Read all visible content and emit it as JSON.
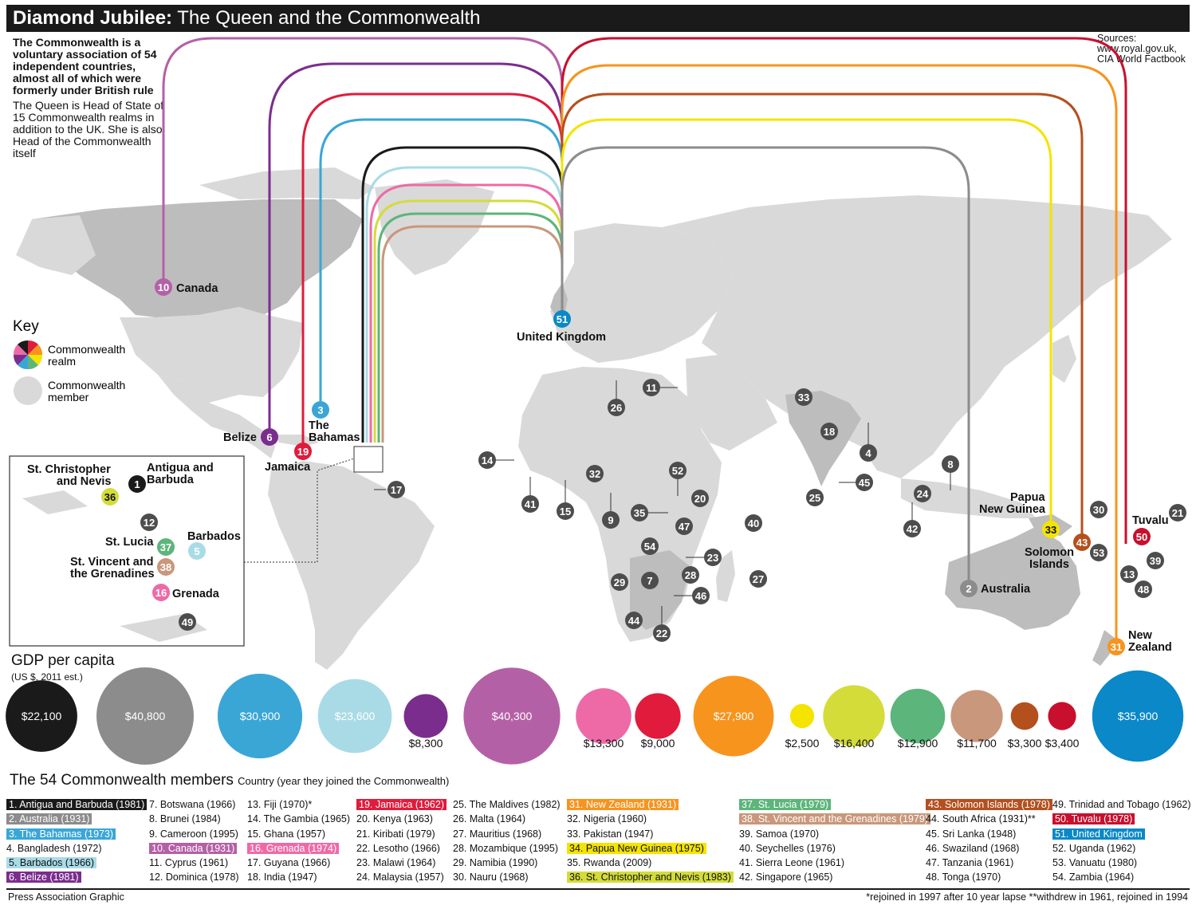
{
  "title": {
    "bold": "Diamond Jubilee:",
    "rest": " The Queen and the Commonwealth"
  },
  "intro": {
    "bold": "The Commonwealth is a voluntary association of 54 independent countries, almost all of which were formerly under British rule",
    "text": "The Queen is Head of State of 15 Commonwealth realms in addition to the UK. She is also Head of the Commonwealth itself"
  },
  "sources": {
    "label": "Sources:",
    "line1": "www.royal.gov.uk,",
    "line2": "CIA World Factbook"
  },
  "key": {
    "title": "Key",
    "realm_line1": "Commonwealth",
    "realm_line2": "realm",
    "member_line1": "Commonwealth",
    "member_line2": "member"
  },
  "colors": {
    "antigua": "#1a1a1a",
    "australia": "#8c8c8c",
    "bahamas": "#3aa6d6",
    "barbados": "#a9dbe7",
    "belize": "#7b2d8e",
    "canada": "#b460a6",
    "grenada": "#ee6aa7",
    "jamaica": "#e01b3c",
    "nz": "#f7941e",
    "png": "#f4e400",
    "stkitts": "#d4dc3a",
    "stlucia": "#5cb57a",
    "stvincent": "#c9977b",
    "solomon": "#b4501e",
    "tuvalu": "#c8102e",
    "uk": "#0a88c7",
    "member": "#4d4d4d",
    "land": "#d9d9d9",
    "realm_land": "#bdbdbd"
  },
  "map_labels": {
    "canada": "Canada",
    "belize": "Belize",
    "bahamas_1": "The",
    "bahamas_2": "Bahamas",
    "jamaica": "Jamaica",
    "uk": "United Kingdom",
    "png_1": "Papua",
    "png_2": "New Guinea",
    "solomon_1": "Solomon",
    "solomon_2": "Islands",
    "australia": "Australia",
    "tuvalu": "Tuvalu",
    "nz_1": "New",
    "nz_2": "Zealand"
  },
  "inset_labels": {
    "stkitts_1": "St. Christopher",
    "stkitts_2": "and Nevis",
    "antigua_1": "Antigua and",
    "antigua_2": "Barbuda",
    "stlucia": "St. Lucia",
    "barbados": "Barbados",
    "stvincent_1": "St. Vincent and",
    "stvincent_2": "the Grenadines",
    "grenada": "Grenada"
  },
  "gdp": {
    "title": "GDP per capita",
    "subtitle": "(US $, 2011 est.)",
    "items": [
      {
        "country": "Antigua and Barbuda",
        "label": "$22,100",
        "value": 22100,
        "color": "#1a1a1a",
        "inside": true
      },
      {
        "country": "Australia",
        "label": "$40,800",
        "value": 40800,
        "color": "#8c8c8c",
        "inside": true
      },
      {
        "country": "The Bahamas",
        "label": "$30,900",
        "value": 30900,
        "color": "#3aa6d6",
        "inside": true
      },
      {
        "country": "Barbados",
        "label": "$23,600",
        "value": 23600,
        "color": "#a9dbe7",
        "inside": true
      },
      {
        "country": "Belize",
        "label": "$8,300",
        "value": 8300,
        "color": "#7b2d8e",
        "inside": false
      },
      {
        "country": "Canada",
        "label": "$40,300",
        "value": 40300,
        "color": "#b460a6",
        "inside": true
      },
      {
        "country": "Grenada",
        "label": "$13,300",
        "value": 13300,
        "color": "#ee6aa7",
        "inside": false
      },
      {
        "country": "Jamaica",
        "label": "$9,000",
        "value": 9000,
        "color": "#e01b3c",
        "inside": false
      },
      {
        "country": "New Zealand",
        "label": "$27,900",
        "value": 27900,
        "color": "#f7941e",
        "inside": true
      },
      {
        "country": "Papua New Guinea",
        "label": "$2,500",
        "value": 2500,
        "color": "#f4e400",
        "inside": false
      },
      {
        "country": "St. Christopher and Nevis",
        "label": "$16,400",
        "value": 16400,
        "color": "#d4dc3a",
        "inside": false
      },
      {
        "country": "St. Lucia",
        "label": "$12,900",
        "value": 12900,
        "color": "#5cb57a",
        "inside": false
      },
      {
        "country": "St. Vincent and the Grenadines",
        "label": "$11,700",
        "value": 11700,
        "color": "#c9977b",
        "inside": false
      },
      {
        "country": "Solomon Islands",
        "label": "$3,300",
        "value": 3300,
        "color": "#b4501e",
        "inside": false
      },
      {
        "country": "Tuvalu",
        "label": "$3,400",
        "value": 3400,
        "color": "#c8102e",
        "inside": false
      },
      {
        "country": "United Kingdom",
        "label": "$35,900",
        "value": 35900,
        "color": "#0a88c7",
        "inside": true
      }
    ]
  },
  "members": {
    "title": "The 54 Commonwealth members",
    "subtitle": "Country (year they joined the Commonwealth)",
    "columns": [
      [
        {
          "text": "1. Antigua and Barbuda (1981)",
          "bg": "#1a1a1a",
          "fg": "#ffffff"
        },
        {
          "text": "2. Australia (1931)",
          "bg": "#8c8c8c",
          "fg": "#ffffff"
        },
        {
          "text": "3. The Bahamas (1973)",
          "bg": "#3aa6d6",
          "fg": "#ffffff"
        },
        {
          "text": "4. Bangladesh (1972)"
        },
        {
          "text": "5. Barbados (1966)",
          "bg": "#a9dbe7",
          "fg": "#111111"
        },
        {
          "text": "6. Belize (1981)",
          "bg": "#7b2d8e",
          "fg": "#ffffff"
        }
      ],
      [
        {
          "text": "7. Botswana (1966)"
        },
        {
          "text": "8. Brunei (1984)"
        },
        {
          "text": "9. Cameroon (1995)"
        },
        {
          "text": "10. Canada (1931)",
          "bg": "#b460a6",
          "fg": "#ffffff"
        },
        {
          "text": "11. Cyprus (1961)"
        },
        {
          "text": "12. Dominica (1978)"
        }
      ],
      [
        {
          "text": "13. Fiji (1970)*"
        },
        {
          "text": "14. The Gambia (1965)"
        },
        {
          "text": "15. Ghana (1957)"
        },
        {
          "text": "16. Grenada (1974)",
          "bg": "#ee6aa7",
          "fg": "#ffffff"
        },
        {
          "text": "17. Guyana (1966)"
        },
        {
          "text": "18. India (1947)"
        }
      ],
      [
        {
          "text": "19. Jamaica (1962)",
          "bg": "#e01b3c",
          "fg": "#ffffff"
        },
        {
          "text": "20. Kenya (1963)"
        },
        {
          "text": "21. Kiribati (1979)"
        },
        {
          "text": "22. Lesotho (1966)"
        },
        {
          "text": "23. Malawi (1964)"
        },
        {
          "text": "24. Malaysia (1957)"
        }
      ],
      [
        {
          "text": "25. The Maldives (1982)"
        },
        {
          "text": "26. Malta (1964)"
        },
        {
          "text": "27. Mauritius (1968)"
        },
        {
          "text": "28. Mozambique (1995)"
        },
        {
          "text": "29. Namibia (1990)"
        },
        {
          "text": "30. Nauru (1968)"
        }
      ],
      [
        {
          "text": "31. New Zealand (1931)",
          "bg": "#f7941e",
          "fg": "#ffffff"
        },
        {
          "text": "32. Nigeria (1960)"
        },
        {
          "text": "33. Pakistan (1947)"
        },
        {
          "text": "34. Papua New Guinea (1975)",
          "bg": "#f4e400",
          "fg": "#111111"
        },
        {
          "text": "35. Rwanda (2009)"
        },
        {
          "text": "36. St. Christopher and Nevis (1983)",
          "bg": "#d4dc3a",
          "fg": "#111111"
        }
      ],
      [
        {
          "text": "37. St. Lucia (1979)",
          "bg": "#5cb57a",
          "fg": "#ffffff"
        },
        {
          "text": "38. St. Vincent and the Grenadines (1979)",
          "bg": "#c9977b",
          "fg": "#ffffff"
        },
        {
          "text": "39. Samoa (1970)"
        },
        {
          "text": "40. Seychelles (1976)"
        },
        {
          "text": "41. Sierra Leone (1961)"
        },
        {
          "text": "42. Singapore (1965)"
        }
      ],
      [
        {
          "text": "43. Solomon Islands (1978)",
          "bg": "#b4501e",
          "fg": "#ffffff"
        },
        {
          "text": "44. South Africa (1931)**"
        },
        {
          "text": "45. Sri Lanka (1948)"
        },
        {
          "text": "46. Swaziland (1968)"
        },
        {
          "text": "47. Tanzania (1961)"
        },
        {
          "text": "48. Tonga (1970)"
        }
      ],
      [
        {
          "text": "49. Trinidad and Tobago (1962)"
        },
        {
          "text": "50. Tuvalu (1978)",
          "bg": "#c8102e",
          "fg": "#ffffff"
        },
        {
          "text": "51. United Kingdom",
          "bg": "#0a88c7",
          "fg": "#ffffff"
        },
        {
          "text": "52. Uganda (1962)"
        },
        {
          "text": "53. Vanuatu (1980)"
        },
        {
          "text": "54. Zambia (1964)"
        }
      ]
    ]
  },
  "footer": {
    "credit": "Press Association Graphic",
    "footnote": "*rejoined in 1997 after 10 year lapse **withdrew in 1961, rejoined in 1994"
  }
}
